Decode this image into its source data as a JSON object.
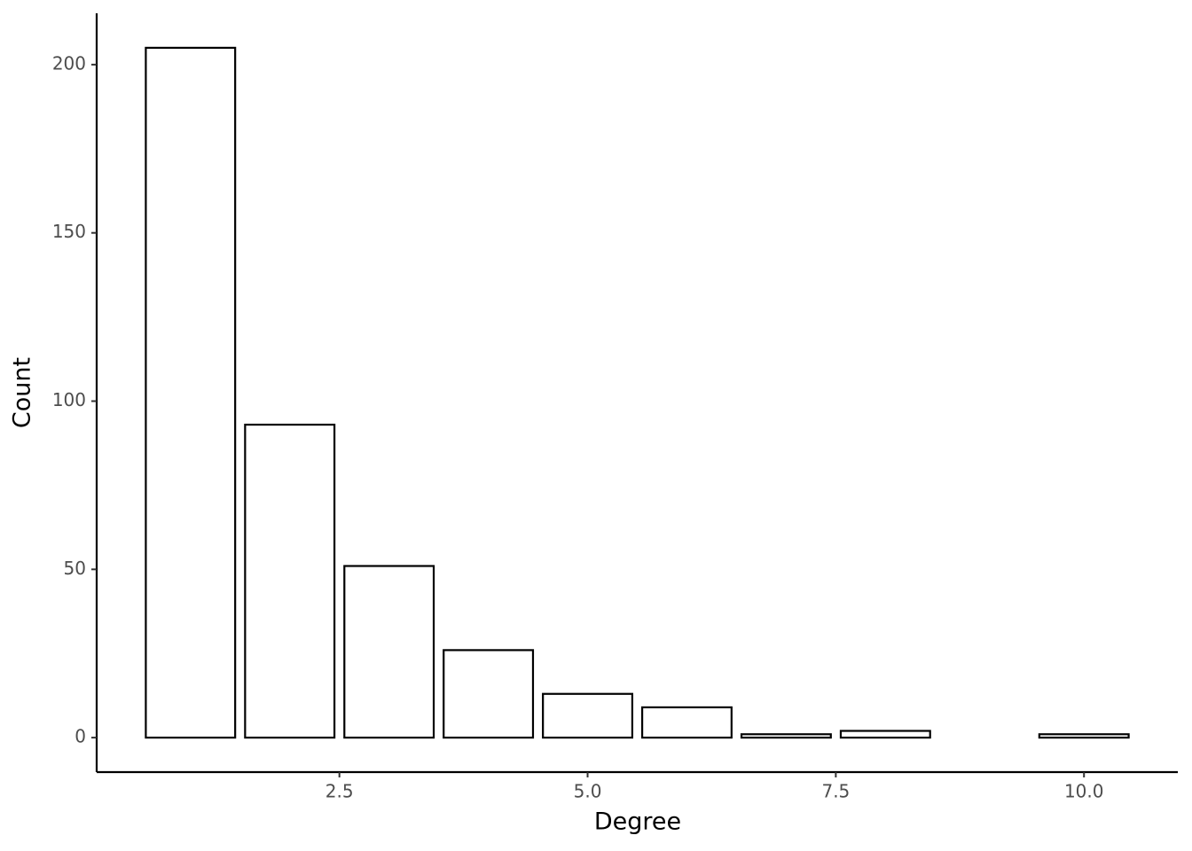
{
  "chart_data": {
    "type": "bar",
    "x_label": "Degree",
    "y_label": "Count",
    "x": [
      1,
      2,
      3,
      4,
      5,
      6,
      7,
      8,
      10
    ],
    "values": [
      205,
      93,
      51,
      26,
      13,
      9,
      1,
      2,
      1
    ],
    "color": "#ffffff",
    "edge_color": "#000000",
    "xlim": [
      0.055,
      10.945
    ],
    "xticks": [
      2.5,
      {
        "value": 5,
        "label": "5.0"
      },
      7.5,
      {
        "value": 10,
        "label": "10.0"
      }
    ],
    "ylim": [
      -10.25,
      215.25
    ],
    "yticks": [
      0,
      50,
      100,
      150,
      200
    ],
    "grid": false
  }
}
